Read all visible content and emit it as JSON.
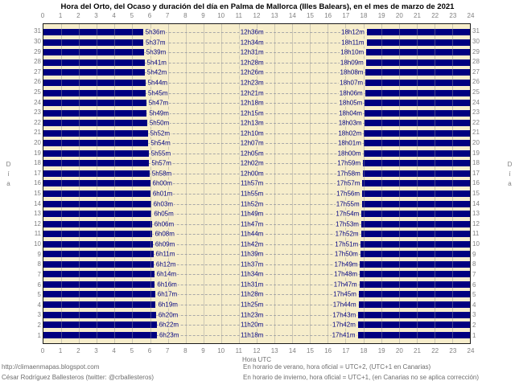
{
  "colors": {
    "bar_night": "#000080",
    "plot_background": "#F6EDCB",
    "grid_line": "#969696",
    "dashed_line": "#A8A8A8",
    "axis_text": "#808080",
    "footer_text": "#6E6E6E",
    "title_text": "#000000"
  },
  "footer": {
    "left_line1": "http://climaenmapas.blogspot.com",
    "left_line2": "César Rodríguez Ballesteros (twitter: @crballesteros)",
    "right_line1": "En horario de verano, hora oficial = UTC+2, (UTC+1 en Canarias)",
    "right_line2": "En horario de invierno, hora oficial = UTC+1, (en Canarias no se aplica corrección)"
  },
  "chart_data": {
    "type": "bar",
    "subtype": "horizontal-gantt-daylight",
    "title": "Hora del Orto, del Ocaso y duración del día en Palma de Mallorca (Illes Balears), en el mes de marzo de 2021",
    "xlabel": "Hora UTC",
    "ylabel": "Día",
    "xlim": [
      0,
      24
    ],
    "x_ticks": [
      0,
      1,
      2,
      3,
      4,
      5,
      6,
      7,
      8,
      9,
      10,
      11,
      12,
      13,
      14,
      15,
      16,
      17,
      18,
      19,
      20,
      21,
      22,
      23,
      24
    ],
    "grid": true,
    "legend": null,
    "series_note": "navy bars = night (00:00→orto and ocaso→24:00); beige gap = daylight",
    "days": [
      {
        "day": 31,
        "orto": "5h36m",
        "duracion": "12h36m",
        "ocaso": "18h12m"
      },
      {
        "day": 30,
        "orto": "5h37m",
        "duracion": "12h34m",
        "ocaso": "18h11m"
      },
      {
        "day": 29,
        "orto": "5h39m",
        "duracion": "12h31m",
        "ocaso": "18h10m"
      },
      {
        "day": 28,
        "orto": "5h41m",
        "duracion": "12h28m",
        "ocaso": "18h09m"
      },
      {
        "day": 27,
        "orto": "5h42m",
        "duracion": "12h26m",
        "ocaso": "18h08m"
      },
      {
        "day": 26,
        "orto": "5h44m",
        "duracion": "12h23m",
        "ocaso": "18h07m"
      },
      {
        "day": 25,
        "orto": "5h45m",
        "duracion": "12h21m",
        "ocaso": "18h06m"
      },
      {
        "day": 24,
        "orto": "5h47m",
        "duracion": "12h18m",
        "ocaso": "18h05m"
      },
      {
        "day": 23,
        "orto": "5h49m",
        "duracion": "12h15m",
        "ocaso": "18h04m"
      },
      {
        "day": 22,
        "orto": "5h50m",
        "duracion": "12h13m",
        "ocaso": "18h03m"
      },
      {
        "day": 21,
        "orto": "5h52m",
        "duracion": "12h10m",
        "ocaso": "18h02m"
      },
      {
        "day": 20,
        "orto": "5h54m",
        "duracion": "12h07m",
        "ocaso": "18h01m"
      },
      {
        "day": 19,
        "orto": "5h55m",
        "duracion": "12h05m",
        "ocaso": "18h00m"
      },
      {
        "day": 18,
        "orto": "5h57m",
        "duracion": "12h02m",
        "ocaso": "17h59m"
      },
      {
        "day": 17,
        "orto": "5h58m",
        "duracion": "12h00m",
        "ocaso": "17h58m"
      },
      {
        "day": 16,
        "orto": "6h00m",
        "duracion": "11h57m",
        "ocaso": "17h57m"
      },
      {
        "day": 15,
        "orto": "6h01m",
        "duracion": "11h55m",
        "ocaso": "17h56m"
      },
      {
        "day": 14,
        "orto": "6h03m",
        "duracion": "11h52m",
        "ocaso": "17h55m"
      },
      {
        "day": 13,
        "orto": "6h05m",
        "duracion": "11h49m",
        "ocaso": "17h54m"
      },
      {
        "day": 12,
        "orto": "6h06m",
        "duracion": "11h47m",
        "ocaso": "17h53m"
      },
      {
        "day": 11,
        "orto": "6h08m",
        "duracion": "11h44m",
        "ocaso": "17h52m"
      },
      {
        "day": 10,
        "orto": "6h09m",
        "duracion": "11h42m",
        "ocaso": "17h51m"
      },
      {
        "day": 9,
        "orto": "6h11m",
        "duracion": "11h39m",
        "ocaso": "17h50m"
      },
      {
        "day": 8,
        "orto": "6h12m",
        "duracion": "11h37m",
        "ocaso": "17h49m"
      },
      {
        "day": 7,
        "orto": "6h14m",
        "duracion": "11h34m",
        "ocaso": "17h48m"
      },
      {
        "day": 6,
        "orto": "6h16m",
        "duracion": "11h31m",
        "ocaso": "17h47m"
      },
      {
        "day": 5,
        "orto": "6h17m",
        "duracion": "11h28m",
        "ocaso": "17h45m"
      },
      {
        "day": 4,
        "orto": "6h19m",
        "duracion": "11h25m",
        "ocaso": "17h44m"
      },
      {
        "day": 3,
        "orto": "6h20m",
        "duracion": "11h23m",
        "ocaso": "17h43m"
      },
      {
        "day": 2,
        "orto": "6h22m",
        "duracion": "11h20m",
        "ocaso": "17h42m"
      },
      {
        "day": 1,
        "orto": "6h23m",
        "duracion": "11h18m",
        "ocaso": "17h41m"
      }
    ]
  }
}
